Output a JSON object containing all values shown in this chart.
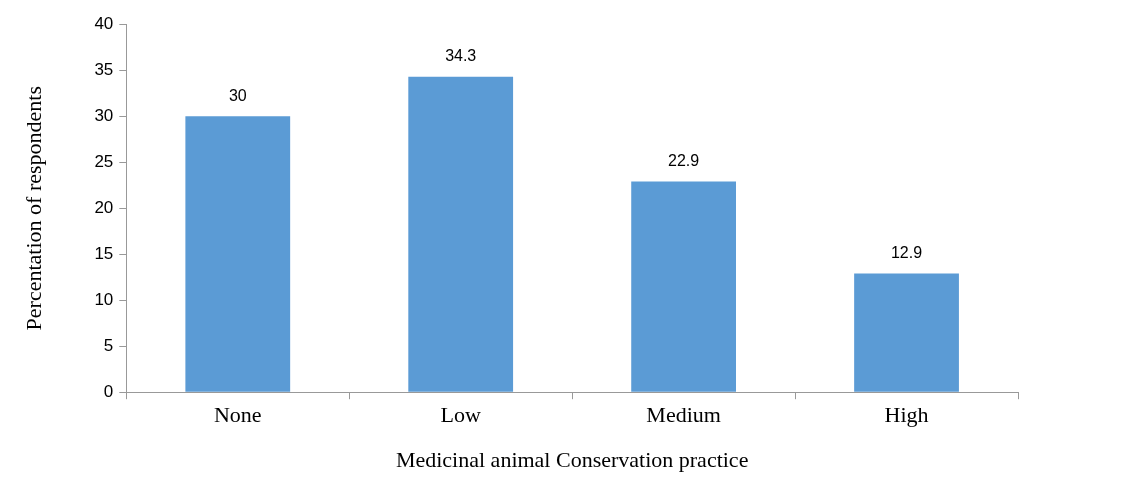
{
  "chart_data": {
    "type": "bar",
    "xlabel": "Medicinal animal Conservation practice",
    "ylabel": "Percentation of respondents",
    "categories": [
      "None",
      "Low",
      "Medium",
      "High"
    ],
    "values": [
      30,
      34.3,
      22.9,
      12.9
    ],
    "color": "#5b9bd5",
    "ylim": [
      0,
      40
    ],
    "yticks": [
      0,
      5,
      10,
      15,
      20,
      25,
      30,
      35,
      40
    ],
    "grid": false,
    "legend": false,
    "data_labels": true
  }
}
